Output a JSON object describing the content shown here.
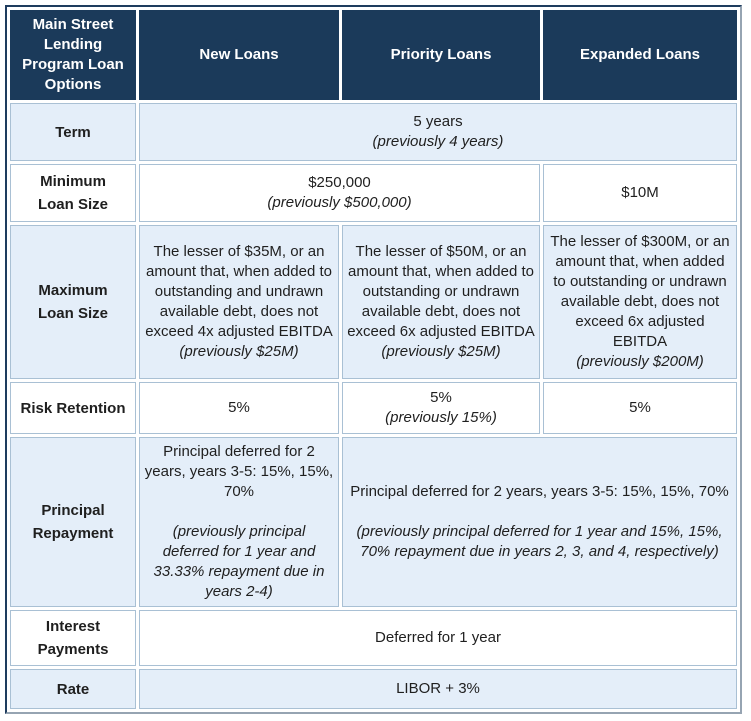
{
  "colors": {
    "header_bg": "#1b3a5a",
    "header_text": "#ffffff",
    "alt_row_bg": "#e4eef9",
    "cell_border": "#a9c0d4",
    "outer_border_dark": "#1e3c5e",
    "outer_border_shadow": "#96a4b2"
  },
  "header": {
    "corner": "Main Street Lending Program Loan Options",
    "col_new": "New Loans",
    "col_priority": "Priority Loans",
    "col_expanded": "Expanded Loans"
  },
  "rows": {
    "term": {
      "label": "Term",
      "all": {
        "main": "5 years",
        "previous": "(previously 4 years)"
      }
    },
    "min_loan": {
      "label": "Minimum\nLoan Size",
      "new_priority": {
        "main": "$250,000",
        "previous": "(previously $500,000)"
      },
      "expanded": {
        "main": "$10M"
      }
    },
    "max_loan": {
      "label": "Maximum\nLoan Size",
      "new": {
        "main": "The lesser of $35M, or an amount that, when added to outstanding and undrawn available debt, does not exceed 4x adjusted EBITDA",
        "previous": "(previously $25M)"
      },
      "priority": {
        "main": "The lesser of $50M, or an amount that, when added to outstanding or undrawn available debt, does not exceed 6x adjusted EBITDA",
        "previous": "(previously $25M)"
      },
      "expanded": {
        "main": "The lesser of $300M, or an amount that, when added to outstanding or undrawn available debt, does not exceed 6x adjusted EBITDA",
        "previous": "(previously $200M)"
      }
    },
    "risk": {
      "label": "Risk Retention",
      "new": {
        "main": "5%"
      },
      "priority": {
        "main": "5%",
        "previous": "(previously 15%)"
      },
      "expanded": {
        "main": "5%"
      }
    },
    "principal": {
      "label": "Principal\nRepayment",
      "new": {
        "main": "Principal deferred for 2 years, years 3-5: 15%, 15%, 70%",
        "previous": "(previously principal deferred for 1 year and 33.33% repayment due in years 2-4)"
      },
      "priority_expanded": {
        "main": "Principal deferred for 2 years, years 3-5: 15%, 15%, 70%",
        "previous": "(previously principal deferred for 1 year and 15%, 15%, 70% repayment due in years 2, 3, and 4, respectively)"
      }
    },
    "interest": {
      "label": "Interest\nPayments",
      "all": {
        "main": "Deferred for 1 year"
      }
    },
    "rate": {
      "label": "Rate",
      "all": {
        "main": "LIBOR + 3%"
      }
    }
  }
}
